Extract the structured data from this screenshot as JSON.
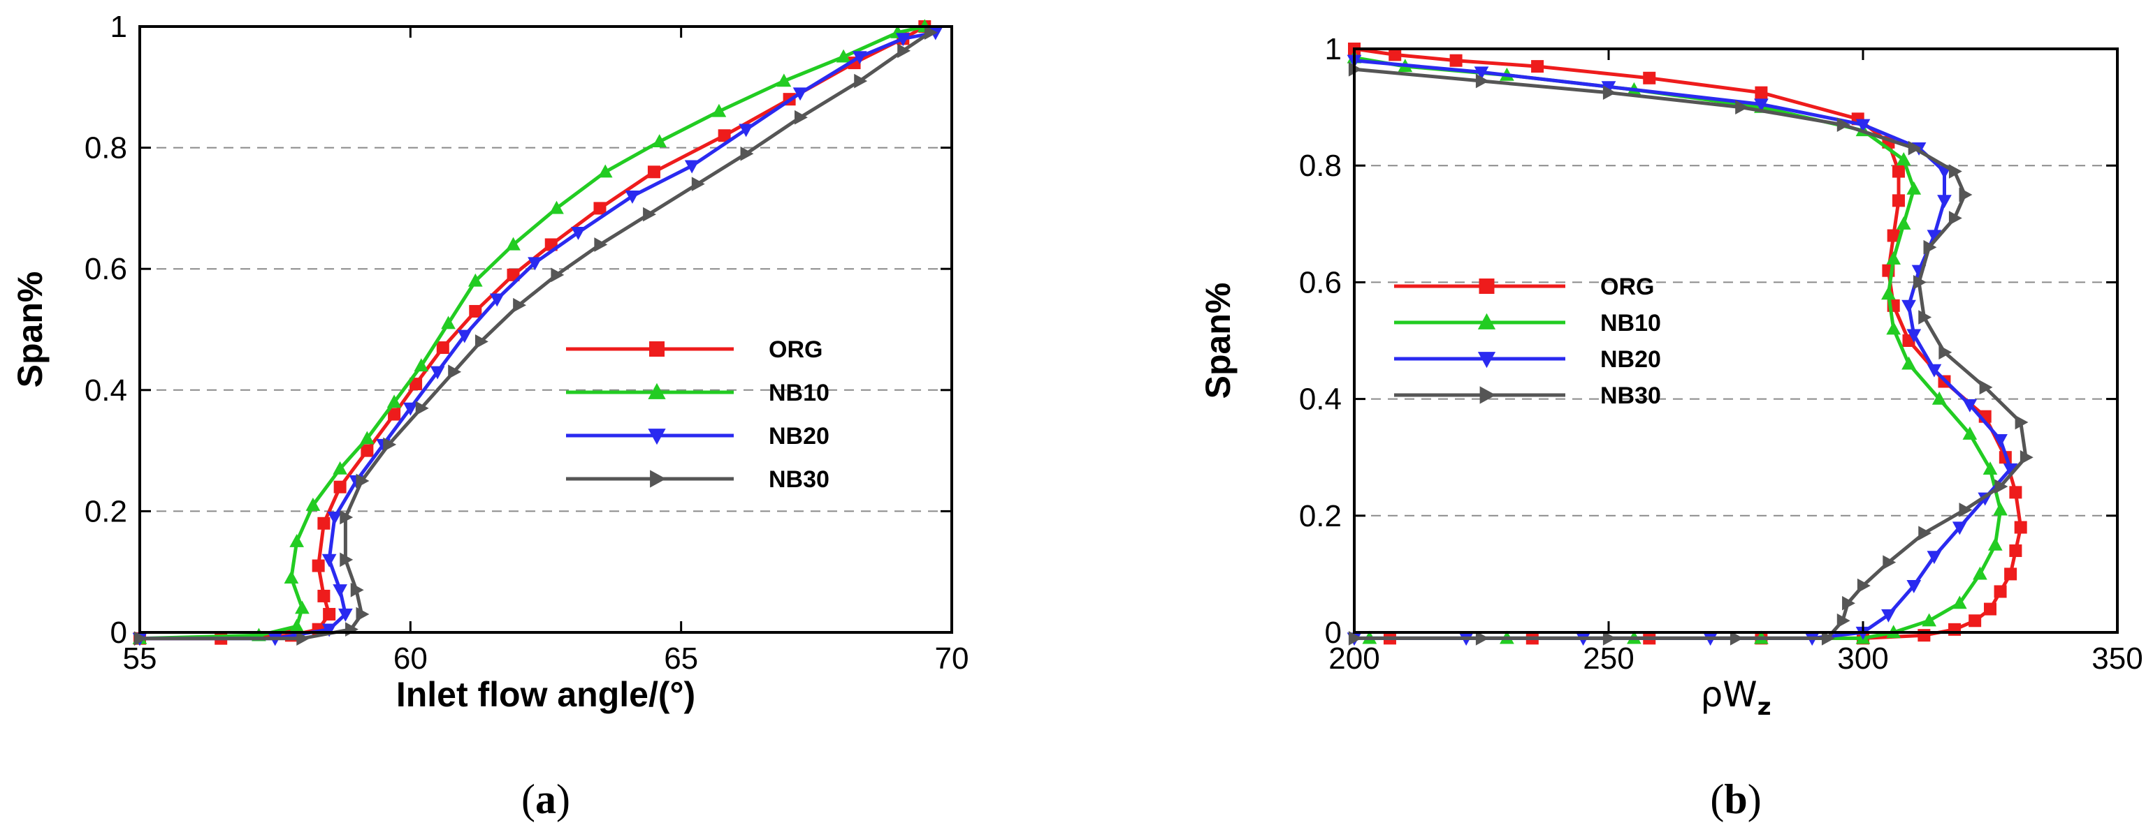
{
  "colors": {
    "ORG": "#ee1c1c",
    "NB10": "#22cc22",
    "NB20": "#2a2af0",
    "NB30": "#555555",
    "gridline": "#8a8a8a"
  },
  "chart_data": [
    {
      "panel": "a",
      "caption_label": "a",
      "type": "line",
      "xlabel": "Inlet flow angle/(°)",
      "ylabel": "Span%",
      "xlim": [
        55,
        70
      ],
      "ylim": [
        0,
        1
      ],
      "x_ticks": [
        55,
        60,
        65,
        70
      ],
      "y_ticks": [
        0,
        0.2,
        0.4,
        0.6,
        0.8,
        1
      ],
      "y_tick_labels": [
        "0",
        "0.2",
        "0.4",
        "0.6",
        "0.8",
        "1"
      ],
      "grid": "horizontal dashed",
      "legend_position": "center-right",
      "series": [
        {
          "name": "ORG",
          "marker": "square",
          "points": [
            [
              55,
              -0.01
            ],
            [
              56.5,
              -0.01
            ],
            [
              57.8,
              -0.005
            ],
            [
              58.3,
              0.005
            ],
            [
              58.5,
              0.03
            ],
            [
              58.4,
              0.06
            ],
            [
              58.3,
              0.11
            ],
            [
              58.4,
              0.18
            ],
            [
              58.7,
              0.24
            ],
            [
              59.2,
              0.3
            ],
            [
              59.7,
              0.36
            ],
            [
              60.1,
              0.41
            ],
            [
              60.6,
              0.47
            ],
            [
              61.2,
              0.53
            ],
            [
              61.9,
              0.59
            ],
            [
              62.6,
              0.64
            ],
            [
              63.5,
              0.7
            ],
            [
              64.5,
              0.76
            ],
            [
              65.8,
              0.82
            ],
            [
              67,
              0.88
            ],
            [
              68.2,
              0.94
            ],
            [
              69.1,
              0.98
            ],
            [
              69.5,
              1.0
            ]
          ]
        },
        {
          "name": "NB10",
          "marker": "triangle-up",
          "points": [
            [
              55,
              -0.01
            ],
            [
              57.2,
              -0.005
            ],
            [
              57.9,
              0.01
            ],
            [
              58,
              0.04
            ],
            [
              57.8,
              0.09
            ],
            [
              57.9,
              0.15
            ],
            [
              58.2,
              0.21
            ],
            [
              58.7,
              0.27
            ],
            [
              59.2,
              0.32
            ],
            [
              59.7,
              0.38
            ],
            [
              60.2,
              0.44
            ],
            [
              60.7,
              0.51
            ],
            [
              61.2,
              0.58
            ],
            [
              61.9,
              0.64
            ],
            [
              62.7,
              0.7
            ],
            [
              63.6,
              0.76
            ],
            [
              64.6,
              0.81
            ],
            [
              65.7,
              0.86
            ],
            [
              66.9,
              0.91
            ],
            [
              68,
              0.95
            ],
            [
              69,
              0.99
            ],
            [
              69.5,
              1.0
            ]
          ]
        },
        {
          "name": "NB20",
          "marker": "triangle-down",
          "points": [
            [
              55,
              -0.01
            ],
            [
              57.5,
              -0.01
            ],
            [
              58.5,
              0.005
            ],
            [
              58.8,
              0.03
            ],
            [
              58.7,
              0.07
            ],
            [
              58.5,
              0.12
            ],
            [
              58.6,
              0.19
            ],
            [
              59,
              0.25
            ],
            [
              59.5,
              0.31
            ],
            [
              60,
              0.37
            ],
            [
              60.5,
              0.43
            ],
            [
              61,
              0.49
            ],
            [
              61.6,
              0.55
            ],
            [
              62.3,
              0.61
            ],
            [
              63.1,
              0.66
            ],
            [
              64.1,
              0.72
            ],
            [
              65.2,
              0.77
            ],
            [
              66.2,
              0.83
            ],
            [
              67.2,
              0.89
            ],
            [
              68.3,
              0.95
            ],
            [
              69.1,
              0.98
            ],
            [
              69.7,
              0.99
            ]
          ]
        },
        {
          "name": "NB30",
          "marker": "triangle-right",
          "points": [
            [
              55,
              -0.01
            ],
            [
              58,
              -0.01
            ],
            [
              58.9,
              0.005
            ],
            [
              59.1,
              0.03
            ],
            [
              59,
              0.07
            ],
            [
              58.8,
              0.12
            ],
            [
              58.8,
              0.19
            ],
            [
              59.1,
              0.25
            ],
            [
              59.6,
              0.31
            ],
            [
              60.2,
              0.37
            ],
            [
              60.8,
              0.43
            ],
            [
              61.3,
              0.48
            ],
            [
              62,
              0.54
            ],
            [
              62.7,
              0.59
            ],
            [
              63.5,
              0.64
            ],
            [
              64.4,
              0.69
            ],
            [
              65.3,
              0.74
            ],
            [
              66.2,
              0.79
            ],
            [
              67.2,
              0.85
            ],
            [
              68.3,
              0.91
            ],
            [
              69.1,
              0.96
            ],
            [
              69.6,
              0.99
            ]
          ]
        }
      ]
    },
    {
      "panel": "b",
      "caption_label": "b",
      "type": "line",
      "xlabel_main": "ρW",
      "xlabel_sub": "z",
      "ylabel": "Span%",
      "xlim": [
        200,
        350
      ],
      "ylim": [
        0,
        1
      ],
      "x_ticks": [
        200,
        250,
        300,
        350
      ],
      "y_ticks": [
        0,
        0.2,
        0.4,
        0.6,
        0.8,
        1
      ],
      "y_tick_labels": [
        "0",
        "0.2",
        "0.4",
        "0.6",
        "0.8",
        "1"
      ],
      "grid": "horizontal dashed",
      "legend_position": "center-left",
      "series": [
        {
          "name": "ORG",
          "marker": "square",
          "points": [
            [
              207,
              -0.01
            ],
            [
              235,
              -0.01
            ],
            [
              258,
              -0.01
            ],
            [
              280,
              -0.01
            ],
            [
              300,
              -0.01
            ],
            [
              312,
              -0.005
            ],
            [
              318,
              0.005
            ],
            [
              322,
              0.02
            ],
            [
              325,
              0.04
            ],
            [
              327,
              0.07
            ],
            [
              329,
              0.1
            ],
            [
              330,
              0.14
            ],
            [
              331,
              0.18
            ],
            [
              330,
              0.24
            ],
            [
              328,
              0.3
            ],
            [
              324,
              0.37
            ],
            [
              316,
              0.43
            ],
            [
              309,
              0.5
            ],
            [
              306,
              0.56
            ],
            [
              305,
              0.62
            ],
            [
              306,
              0.68
            ],
            [
              307,
              0.74
            ],
            [
              307,
              0.79
            ],
            [
              305,
              0.84
            ],
            [
              299,
              0.88
            ],
            [
              280,
              0.925
            ],
            [
              258,
              0.95
            ],
            [
              236,
              0.97
            ],
            [
              220,
              0.98
            ],
            [
              208,
              0.99
            ],
            [
              200,
              1.0
            ]
          ]
        },
        {
          "name": "NB10",
          "marker": "triangle-up",
          "points": [
            [
              203,
              -0.01
            ],
            [
              230,
              -0.01
            ],
            [
              255,
              -0.01
            ],
            [
              280,
              -0.01
            ],
            [
              300,
              -0.01
            ],
            [
              306,
              0.0
            ],
            [
              313,
              0.02
            ],
            [
              319,
              0.05
            ],
            [
              323,
              0.1
            ],
            [
              326,
              0.15
            ],
            [
              327,
              0.21
            ],
            [
              325,
              0.28
            ],
            [
              321,
              0.34
            ],
            [
              315,
              0.4
            ],
            [
              309,
              0.46
            ],
            [
              306,
              0.52
            ],
            [
              305,
              0.58
            ],
            [
              306,
              0.64
            ],
            [
              308,
              0.7
            ],
            [
              310,
              0.76
            ],
            [
              308,
              0.81
            ],
            [
              300,
              0.86
            ],
            [
              280,
              0.9
            ],
            [
              255,
              0.93
            ],
            [
              230,
              0.955
            ],
            [
              210,
              0.97
            ],
            [
              200,
              0.985
            ]
          ]
        },
        {
          "name": "NB20",
          "marker": "triangle-down",
          "points": [
            [
              200,
              -0.01
            ],
            [
              222,
              -0.01
            ],
            [
              245,
              -0.01
            ],
            [
              270,
              -0.01
            ],
            [
              290,
              -0.01
            ],
            [
              300,
              0.0
            ],
            [
              305,
              0.03
            ],
            [
              310,
              0.08
            ],
            [
              314,
              0.13
            ],
            [
              319,
              0.18
            ],
            [
              324,
              0.23
            ],
            [
              329,
              0.28
            ],
            [
              327,
              0.33
            ],
            [
              321,
              0.39
            ],
            [
              314,
              0.45
            ],
            [
              310,
              0.51
            ],
            [
              309,
              0.56
            ],
            [
              311,
              0.62
            ],
            [
              314,
              0.68
            ],
            [
              316,
              0.74
            ],
            [
              316,
              0.79
            ],
            [
              311,
              0.83
            ],
            [
              300,
              0.87
            ],
            [
              280,
              0.905
            ],
            [
              250,
              0.935
            ],
            [
              225,
              0.96
            ],
            [
              200,
              0.98
            ]
          ]
        },
        {
          "name": "NB30",
          "marker": "triangle-right",
          "points": [
            [
              200,
              -0.01
            ],
            [
              225,
              -0.01
            ],
            [
              250,
              -0.01
            ],
            [
              275,
              -0.01
            ],
            [
              293,
              -0.01
            ],
            [
              296,
              0.02
            ],
            [
              297,
              0.05
            ],
            [
              300,
              0.08
            ],
            [
              305,
              0.12
            ],
            [
              312,
              0.17
            ],
            [
              320,
              0.21
            ],
            [
              327,
              0.25
            ],
            [
              332,
              0.3
            ],
            [
              331,
              0.36
            ],
            [
              324,
              0.42
            ],
            [
              316,
              0.48
            ],
            [
              312,
              0.54
            ],
            [
              311,
              0.6
            ],
            [
              313,
              0.66
            ],
            [
              318,
              0.71
            ],
            [
              320,
              0.75
            ],
            [
              318,
              0.79
            ],
            [
              310,
              0.83
            ],
            [
              296,
              0.87
            ],
            [
              276,
              0.9
            ],
            [
              250,
              0.925
            ],
            [
              225,
              0.945
            ],
            [
              200,
              0.965
            ]
          ]
        }
      ]
    }
  ]
}
